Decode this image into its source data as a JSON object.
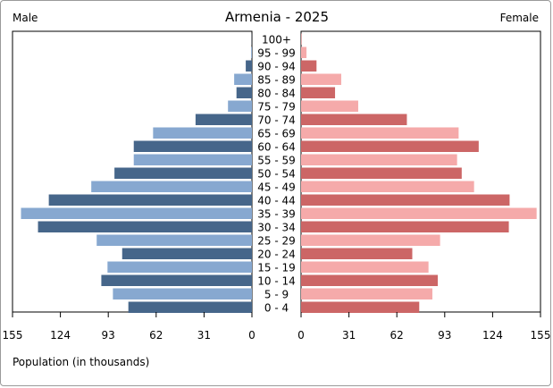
{
  "chart_data": {
    "type": "bar",
    "title": "Armenia - 2025",
    "left_label": "Male",
    "right_label": "Female",
    "xlabel": "Population (in thousands)",
    "xlim": [
      0,
      155
    ],
    "ticks": [
      155,
      124,
      93,
      62,
      31,
      0
    ],
    "categories": [
      "100+",
      "95 - 99",
      "90 - 94",
      "85 - 89",
      "80 - 84",
      "75 - 79",
      "70 - 74",
      "65 - 69",
      "60 - 64",
      "55 - 59",
      "50 - 54",
      "45 - 49",
      "40 - 44",
      "35 - 39",
      "30 - 34",
      "25 - 29",
      "20 - 24",
      "15 - 19",
      "10 - 14",
      "5 - 9",
      "0 - 4"
    ],
    "series": [
      {
        "name": "Male",
        "values": [
          0.1,
          0.5,
          4,
          11.5,
          10,
          15.5,
          36.5,
          64,
          76.5,
          76.5,
          89,
          104,
          131.5,
          149.5,
          138.5,
          100.5,
          84,
          93.5,
          97.5,
          90,
          80
        ]
      },
      {
        "name": "Female",
        "values": [
          0.3,
          3.5,
          10,
          26,
          22,
          37,
          68.5,
          102,
          115,
          101,
          104,
          112,
          135,
          152.5,
          134.5,
          90,
          72,
          82.5,
          88.5,
          85,
          76.5
        ]
      }
    ],
    "colors": {
      "male_dark": "#46668a",
      "male_light": "#87a8d0",
      "female_dark": "#cc6666",
      "female_light": "#f5aaaa"
    },
    "grid": false
  }
}
